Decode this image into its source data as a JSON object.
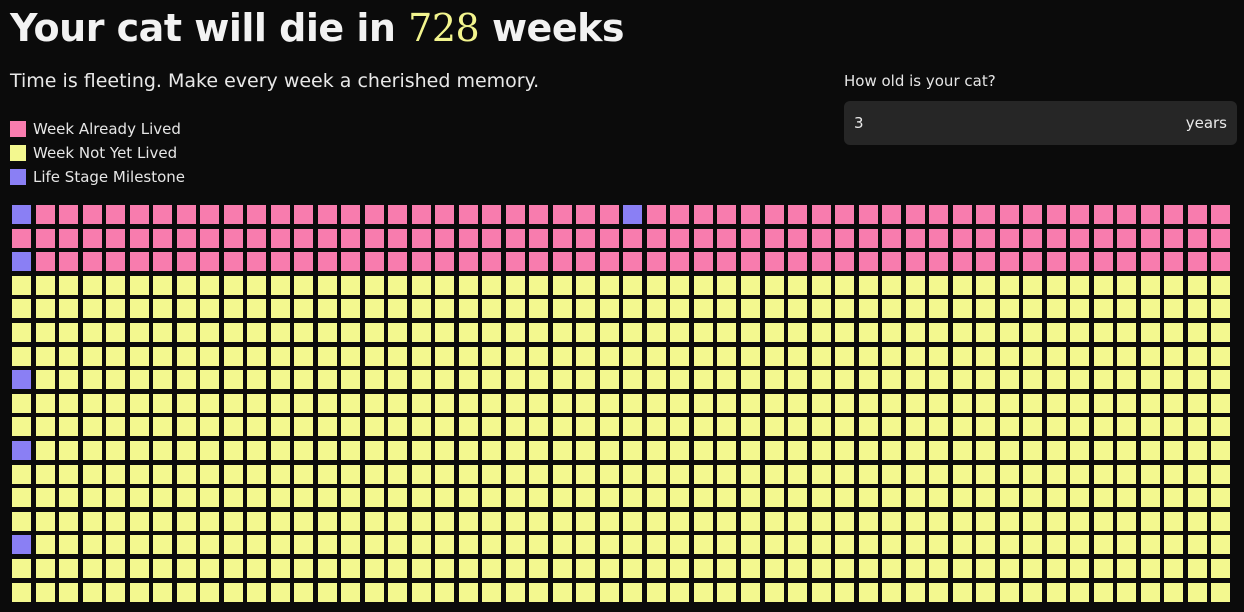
{
  "header": {
    "title_prefix": "Your cat will die in",
    "weeks_remaining": "728",
    "title_suffix": "weeks",
    "subtitle": "Time is fleeting. Make every week a cherished memory."
  },
  "legend": [
    {
      "label": "Week Already Lived",
      "color": "#f87cae"
    },
    {
      "label": "Week Not Yet Lived",
      "color": "#f3f88f"
    },
    {
      "label": "Life Stage Milestone",
      "color": "#8a7ff4"
    }
  ],
  "age_input": {
    "label": "How old is your cat?",
    "value": "3",
    "unit": "years"
  },
  "week_grid": {
    "weeks_per_year": 52,
    "weeks_lived": 156,
    "visible_weeks": 884,
    "milestone_weeks": [
      0,
      26,
      104,
      364,
      520,
      728
    ],
    "colors": {
      "lived": "#f87cae",
      "future": "#f3f88f",
      "milestone": "#8a7ff4"
    }
  }
}
